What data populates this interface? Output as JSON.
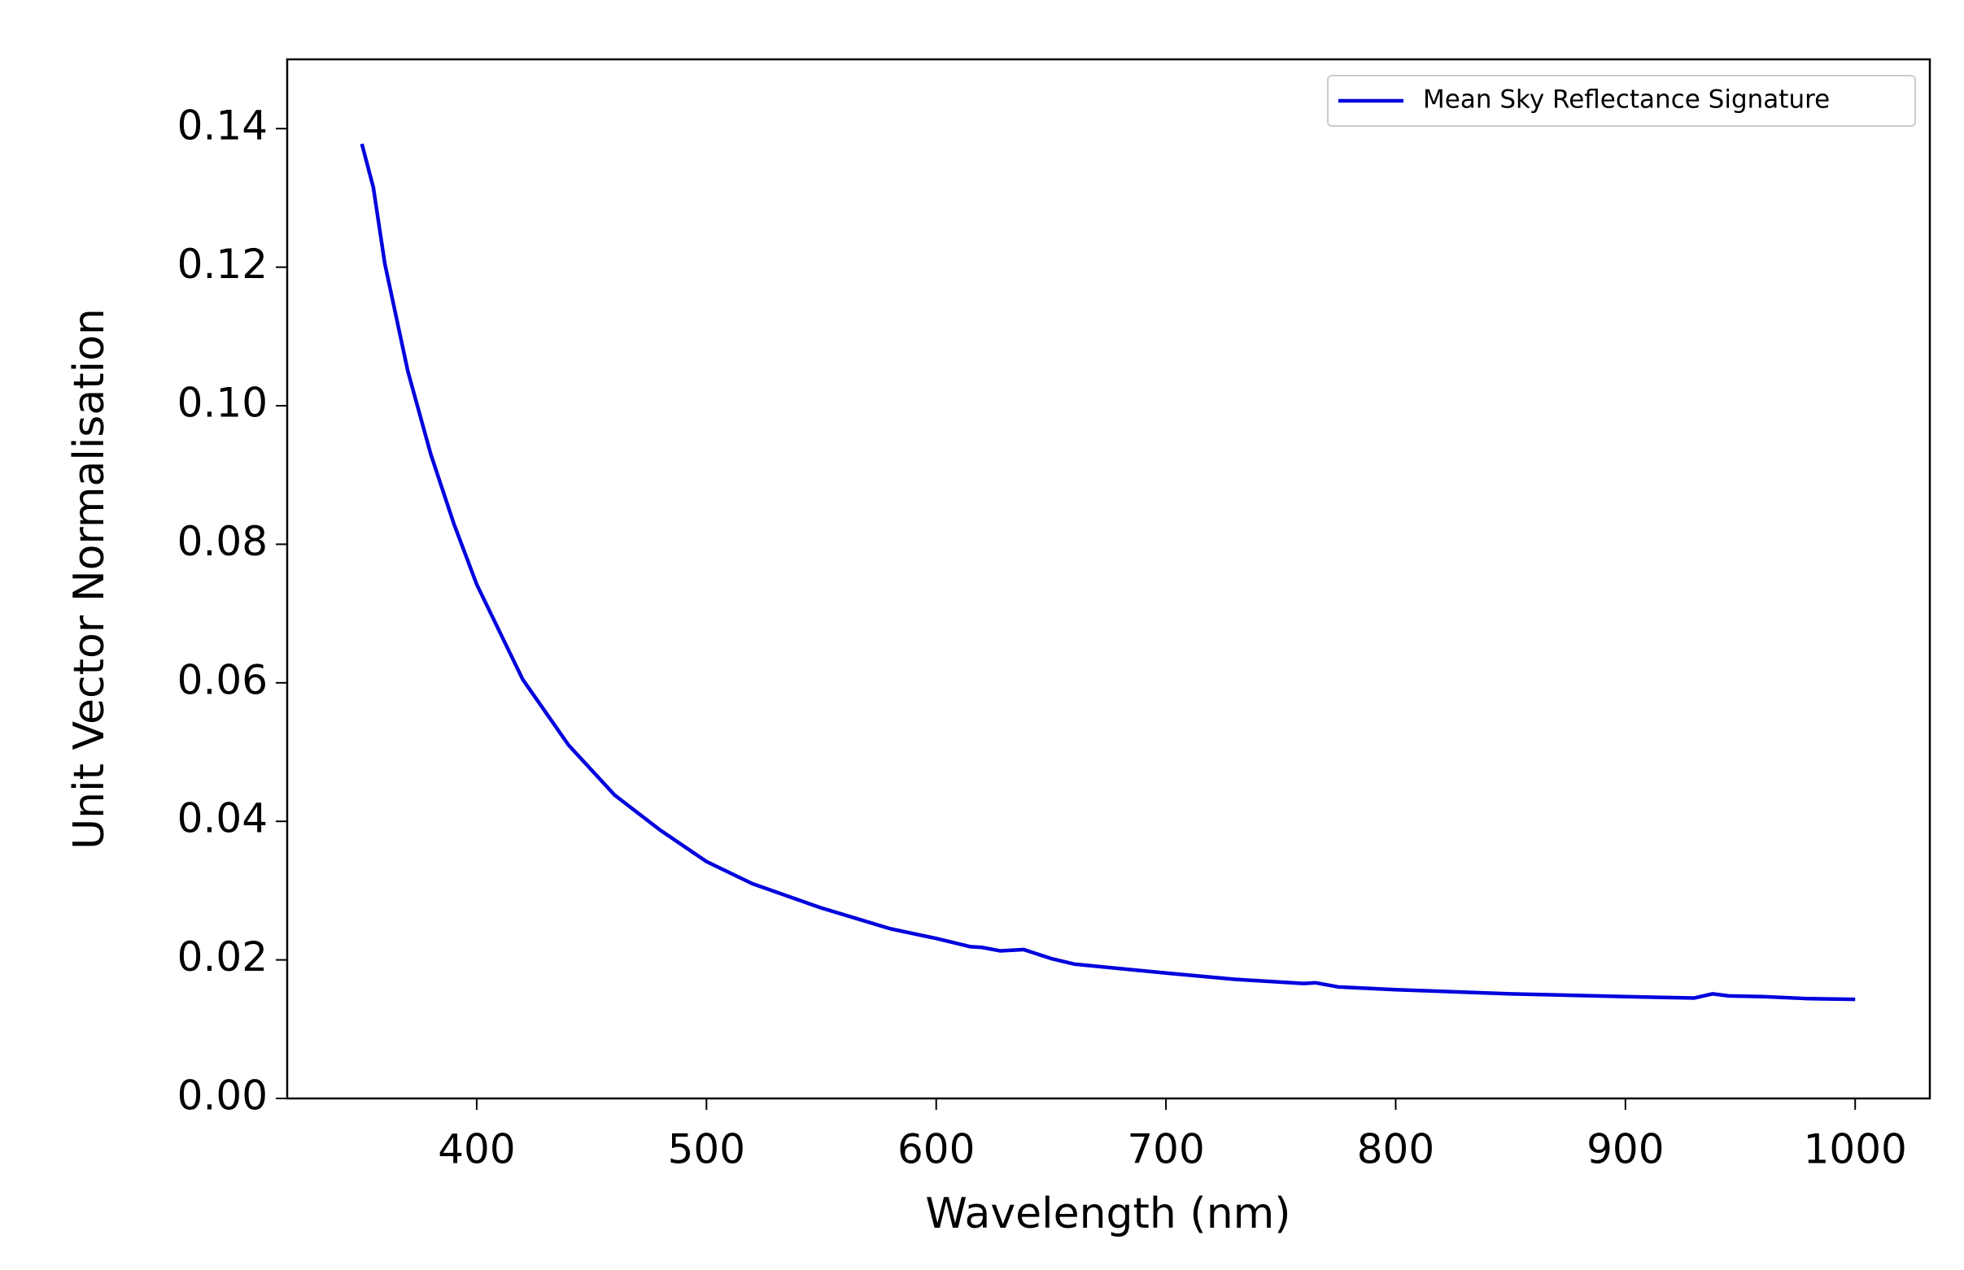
{
  "chart_data": {
    "type": "line",
    "xlabel": "Wavelength (nm)",
    "ylabel": "Unit Vector Normalisation",
    "x": [
      350,
      355,
      360,
      370,
      380,
      390,
      400,
      420,
      440,
      460,
      480,
      500,
      520,
      550,
      580,
      600,
      615,
      620,
      628,
      638,
      650,
      660,
      700,
      730,
      760,
      765,
      775,
      800,
      850,
      900,
      930,
      938,
      945,
      960,
      980,
      1000
    ],
    "series": [
      {
        "name": "Mean Sky Reflectance Signature",
        "color": "#0000dd",
        "values": [
          0.1378,
          0.1315,
          0.1205,
          0.105,
          0.093,
          0.083,
          0.0742,
          0.0605,
          0.051,
          0.0438,
          0.0387,
          0.0342,
          0.031,
          0.0275,
          0.0245,
          0.0231,
          0.0219,
          0.0218,
          0.0213,
          0.0215,
          0.0202,
          0.0194,
          0.0181,
          0.0172,
          0.0166,
          0.0167,
          0.0161,
          0.0157,
          0.0151,
          0.0147,
          0.0145,
          0.0151,
          0.0148,
          0.0147,
          0.0144,
          0.0143
        ]
      }
    ],
    "xlim": [
      317.5,
      1032.5
    ],
    "ylim": [
      0,
      0.15
    ],
    "xticks": [
      400,
      500,
      600,
      700,
      800,
      900,
      1000
    ],
    "yticks": [
      {
        "value": 0,
        "label": "0.00"
      },
      0.02,
      0.04,
      0.06,
      0.08,
      {
        "value": 0.1,
        "label": "0.10"
      },
      0.12,
      0.14
    ],
    "legend": "upper right"
  }
}
